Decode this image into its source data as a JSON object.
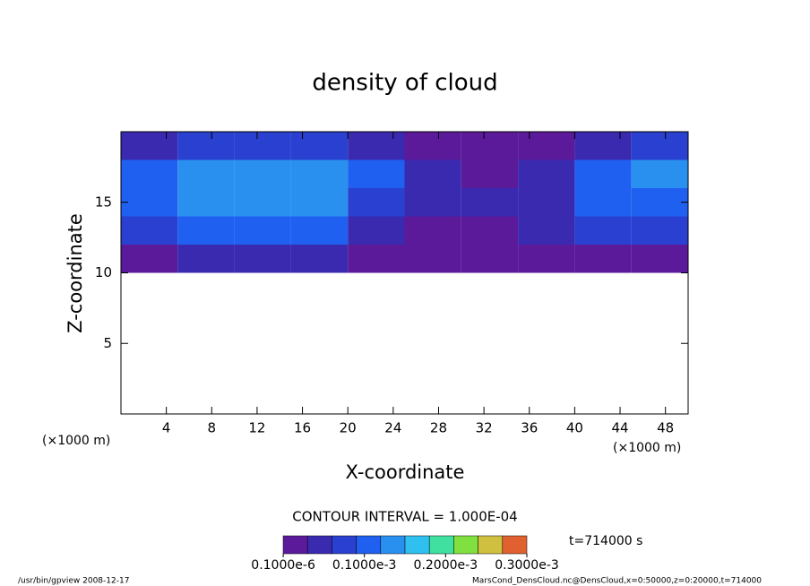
{
  "chart_data": {
    "type": "heatmap",
    "title": "density of cloud",
    "x_label": "X-coordinate",
    "y_label": "Z-coordinate",
    "x_unit": "(×1000 m)",
    "y_unit": "(×1000 m)",
    "xlim": [
      0,
      50
    ],
    "ylim": [
      0,
      20
    ],
    "xticks": [
      4,
      8,
      12,
      16,
      20,
      24,
      28,
      32,
      36,
      40,
      44,
      48
    ],
    "yticks": [
      5,
      10,
      15
    ],
    "x": [
      2.5,
      7.5,
      12.5,
      17.5,
      22.5,
      27.5,
      32.5,
      37.5,
      42.5,
      47.5
    ],
    "y": [
      11,
      13,
      15,
      17,
      19
    ],
    "z": [
      [
        2e-05,
        4e-05,
        4e-05,
        3e-05,
        2e-05,
        1e-05,
        1e-05,
        1e-05,
        2e-05,
        2e-05
      ],
      [
        6e-05,
        0.0001,
        0.00011,
        9e-05,
        5e-05,
        2e-05,
        2e-05,
        3e-05,
        7e-05,
        6e-05
      ],
      [
        9e-05,
        0.00012,
        0.00013,
        0.00012,
        8e-05,
        3e-05,
        3e-05,
        4e-05,
        0.0001,
        9e-05
      ],
      [
        0.00011,
        0.00014,
        0.00013,
        0.00014,
        9e-05,
        3e-05,
        2e-05,
        4e-05,
        9e-05,
        0.00012
      ],
      [
        5e-05,
        7e-05,
        7e-05,
        8e-05,
        4e-05,
        2e-05,
        1e-05,
        2e-05,
        5e-05,
        7e-05
      ]
    ],
    "contour_interval": "CONTOUR INTERVAL = 1.000E-04",
    "time": "t=714000 s",
    "colorbar": {
      "levels": [
        0,
        3e-05,
        6e-05,
        9e-05,
        0.00012,
        0.00015,
        0.00018,
        0.00021,
        0.00024,
        0.00027,
        0.0003
      ],
      "colors": [
        "#5a1a9a",
        "#3a2ab0",
        "#2a40d0",
        "#2060f0",
        "#2a90f0",
        "#30c0f0",
        "#40e0a0",
        "#80e040",
        "#d0c040",
        "#e06030"
      ],
      "ticks": [
        {
          "value": 1e-07,
          "label": "0.1000e-6"
        },
        {
          "value": 0.0001,
          "label": "0.1000e-3"
        },
        {
          "value": 0.0002,
          "label": "0.2000e-3"
        },
        {
          "value": 0.0003,
          "label": "0.3000e-3"
        }
      ]
    }
  },
  "footer": {
    "left": "/usr/bin/gpview  2008-12-17",
    "right": "MarsCond_DensCloud.nc@DensCloud,x=0:50000,z=0:20000,t=714000"
  }
}
